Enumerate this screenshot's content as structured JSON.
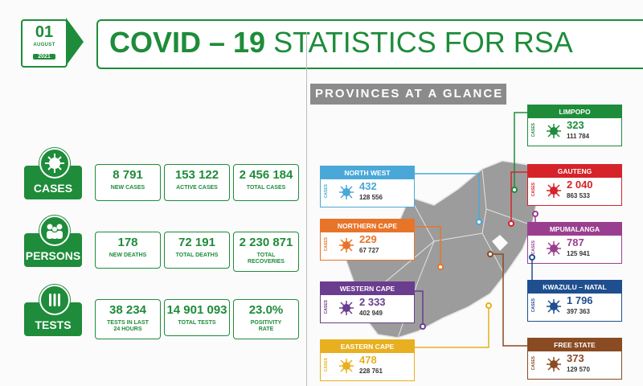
{
  "date": {
    "day": "01",
    "month": "AUGUST",
    "year": "2021"
  },
  "title": {
    "part1": "COVID – 19",
    "part2": "STATISTICS FOR RSA"
  },
  "colors": {
    "brand_green": "#1e8c3a"
  },
  "sections": {
    "cases": {
      "label": "CASES",
      "icon": "virus-icon",
      "stats": [
        {
          "value": "8 791",
          "label": "NEW CASES"
        },
        {
          "value": "153 122",
          "label": "ACTIVE CASES"
        },
        {
          "value": "2 456 184",
          "label": "TOTAL CASES"
        }
      ]
    },
    "persons": {
      "label": "PERSONS",
      "icon": "people-icon",
      "stats": [
        {
          "value": "178",
          "label": "NEW DEATHS"
        },
        {
          "value": "72 191",
          "label": "TOTAL DEATHS"
        },
        {
          "value": "2 230 871",
          "label": "TOTAL RECOVERIES"
        }
      ]
    },
    "tests": {
      "label": "TESTS",
      "icon": "test-tubes-icon",
      "stats": [
        {
          "value": "38 234",
          "label": "TESTS IN LAST 24 HOURS"
        },
        {
          "value": "14 901 093",
          "label": "TOTAL TESTS"
        },
        {
          "value": "23.0%",
          "label": "POSITIVITY RATE"
        }
      ]
    }
  },
  "provinces_heading": "PROVINCES AT A GLANCE",
  "cases_tag": "CASES",
  "provinces": {
    "limpopo": {
      "name": "LIMPOPO",
      "cases": "323",
      "total": "111 784",
      "color": "#1e8c3a"
    },
    "gauteng": {
      "name": "GAUTENG",
      "cases": "2 040",
      "total": "863 533",
      "color": "#d6232a"
    },
    "mpumalanga": {
      "name": "MPUMALANGA",
      "cases": "787",
      "total": "125 941",
      "color": "#9a3f8f"
    },
    "kwazulu_natal": {
      "name": "KWAZULU – NATAL",
      "cases": "1 796",
      "total": "397 363",
      "color": "#1f4f8f"
    },
    "free_state": {
      "name": "FREE STATE",
      "cases": "373",
      "total": "129 570",
      "color": "#8a4a22"
    },
    "north_west": {
      "name": "NORTH WEST",
      "cases": "432",
      "total": "128 556",
      "color": "#4aa8d8"
    },
    "northern_cape": {
      "name": "NORTHERN CAPE",
      "cases": "229",
      "total": "67 727",
      "color": "#e8742a"
    },
    "western_cape": {
      "name": "WESTERN CAPE",
      "cases": "2 333",
      "total": "402 949",
      "color": "#6a3d8f"
    },
    "eastern_cape": {
      "name": "EASTERN CAPE",
      "cases": "478",
      "total": "228 761",
      "color": "#e8b020"
    }
  }
}
